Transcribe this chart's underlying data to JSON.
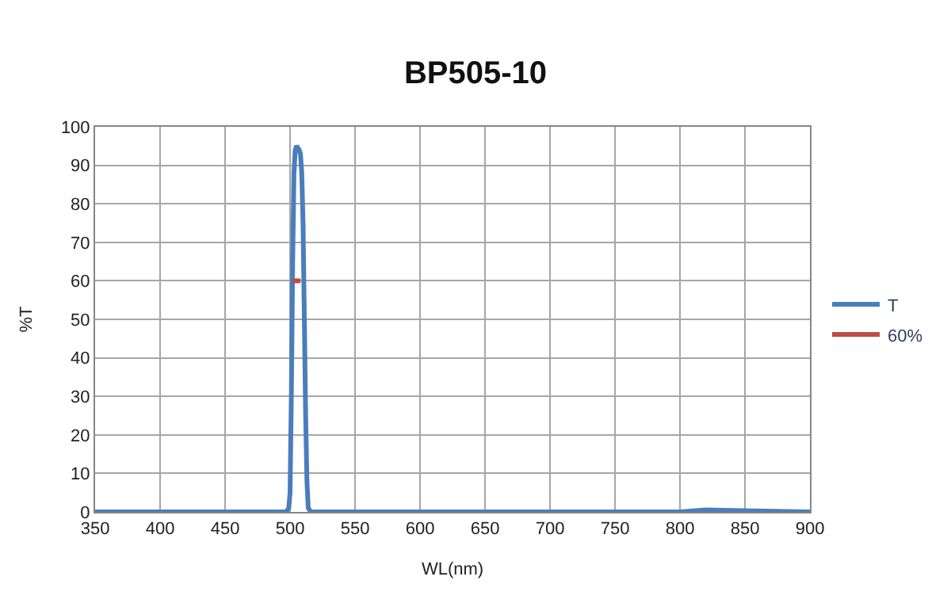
{
  "chart_data": {
    "type": "line",
    "title": "BP505-10",
    "xlabel": "WL(nm)",
    "ylabel": "%T",
    "xlim": [
      350,
      900
    ],
    "xticks": [
      350,
      400,
      450,
      500,
      550,
      600,
      650,
      700,
      750,
      800,
      850,
      900
    ],
    "ylim": [
      0,
      100
    ],
    "yticks": [
      0,
      10,
      20,
      30,
      40,
      50,
      60,
      70,
      80,
      90,
      100
    ],
    "grid": true,
    "legend": "right",
    "marker": "none",
    "line_style": "solid",
    "series": [
      {
        "name": "T",
        "color": "#4a7ebb",
        "x": [
          350,
          450,
          497,
          499,
          500,
          501,
          502,
          503,
          504,
          505,
          507,
          508,
          509,
          510,
          511,
          512,
          513,
          514,
          516,
          600,
          700,
          800,
          820,
          850,
          900
        ],
        "values": [
          0,
          0,
          0,
          1,
          5,
          30,
          65,
          88,
          94,
          95,
          94,
          93,
          88,
          75,
          50,
          25,
          8,
          1,
          0,
          0,
          0,
          0,
          0.5,
          0.3,
          0
        ]
      },
      {
        "name": "60%",
        "color": "#be4b48",
        "x": [
          502,
          508
        ],
        "values": [
          60,
          60
        ]
      }
    ]
  }
}
